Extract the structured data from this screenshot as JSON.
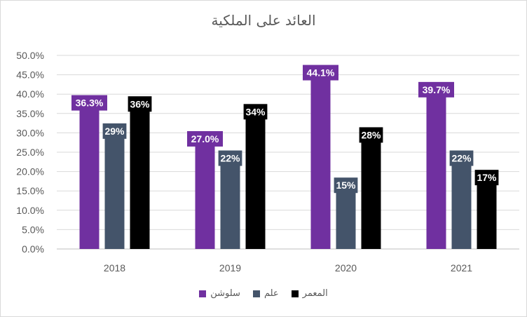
{
  "chart_data": {
    "type": "bar",
    "title": "العائد على الملكية",
    "categories": [
      "2018",
      "2019",
      "2020",
      "2021"
    ],
    "series": [
      {
        "name": "سلوشن",
        "color": "#7030a0",
        "values": [
          36.3,
          27.0,
          44.1,
          39.7
        ],
        "labels": [
          "36.3%",
          "27.0%",
          "44.1%",
          "39.7%"
        ]
      },
      {
        "name": "علم",
        "color": "#44546a",
        "values": [
          29,
          22,
          15,
          22
        ],
        "labels": [
          "29%",
          "22%",
          "15%",
          "22%"
        ]
      },
      {
        "name": "المعمر",
        "color": "#000000",
        "values": [
          36,
          34,
          28,
          17
        ],
        "labels": [
          "36%",
          "34%",
          "28%",
          "17%"
        ]
      }
    ],
    "y_ticks": [
      "0.0%",
      "5.0%",
      "10.0%",
      "15.0%",
      "20.0%",
      "25.0%",
      "30.0%",
      "35.0%",
      "40.0%",
      "45.0%",
      "50.0%"
    ],
    "ylim": [
      0,
      50
    ],
    "grid": true,
    "legend_position": "bottom",
    "xlabel": "",
    "ylabel": ""
  }
}
